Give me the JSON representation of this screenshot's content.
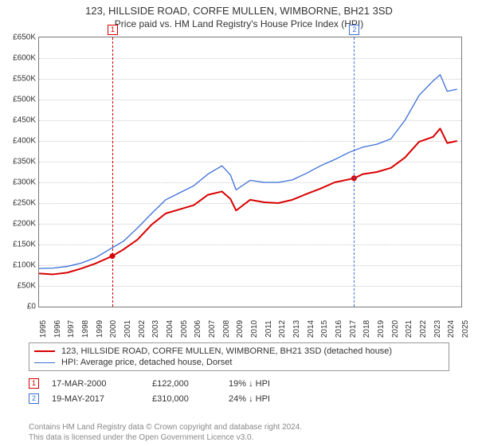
{
  "title": "123, HILLSIDE ROAD, CORFE MULLEN, WIMBORNE, BH21 3SD",
  "subtitle": "Price paid vs. HM Land Registry's House Price Index (HPI)",
  "chart": {
    "type": "line",
    "background_color": "#ffffff",
    "grid_color": "#c9c9c9",
    "border_color": "#7a7a7a",
    "x": {
      "min": 1995,
      "max": 2025,
      "ticks": [
        1995,
        1996,
        1997,
        1998,
        1999,
        2000,
        2001,
        2002,
        2003,
        2004,
        2005,
        2006,
        2007,
        2008,
        2009,
        2010,
        2011,
        2012,
        2013,
        2014,
        2015,
        2016,
        2017,
        2018,
        2019,
        2020,
        2021,
        2022,
        2023,
        2024,
        2025
      ]
    },
    "y": {
      "min": 0,
      "max": 650000,
      "step": 50000,
      "prefix": "£",
      "thousand": "K",
      "ticks": [
        0,
        50000,
        100000,
        150000,
        200000,
        250000,
        300000,
        350000,
        400000,
        450000,
        500000,
        550000,
        600000,
        650000
      ]
    },
    "series": [
      {
        "id": "property",
        "label": "123, HILLSIDE ROAD, CORFE MULLEN, WIMBORNE, BH21 3SD (detached house)",
        "color": "#d90000",
        "line_width": 2,
        "data": [
          [
            1995.0,
            80000
          ],
          [
            1996.0,
            78000
          ],
          [
            1997.0,
            82000
          ],
          [
            1998.0,
            92000
          ],
          [
            1999.0,
            104000
          ],
          [
            2000.2,
            122000
          ],
          [
            2001.0,
            138000
          ],
          [
            2002.0,
            162000
          ],
          [
            2003.0,
            198000
          ],
          [
            2004.0,
            225000
          ],
          [
            2005.0,
            235000
          ],
          [
            2006.0,
            245000
          ],
          [
            2007.0,
            270000
          ],
          [
            2008.0,
            278000
          ],
          [
            2008.6,
            260000
          ],
          [
            2009.0,
            232000
          ],
          [
            2010.0,
            258000
          ],
          [
            2011.0,
            252000
          ],
          [
            2012.0,
            250000
          ],
          [
            2013.0,
            258000
          ],
          [
            2014.0,
            272000
          ],
          [
            2015.0,
            285000
          ],
          [
            2016.0,
            300000
          ],
          [
            2017.4,
            310000
          ],
          [
            2018.0,
            320000
          ],
          [
            2019.0,
            325000
          ],
          [
            2020.0,
            335000
          ],
          [
            2021.0,
            360000
          ],
          [
            2022.0,
            398000
          ],
          [
            2023.0,
            410000
          ],
          [
            2023.5,
            430000
          ],
          [
            2024.0,
            395000
          ],
          [
            2024.7,
            400000
          ]
        ],
        "markers": [
          {
            "x": 2000.21,
            "y": 122000
          },
          {
            "x": 2017.38,
            "y": 310000
          }
        ]
      },
      {
        "id": "hpi",
        "label": "HPI: Average price, detached house, Dorset",
        "color": "#3a6fd8",
        "line_width": 1.3,
        "data": [
          [
            1995.0,
            92000
          ],
          [
            1996.0,
            93000
          ],
          [
            1997.0,
            97000
          ],
          [
            1998.0,
            105000
          ],
          [
            1999.0,
            118000
          ],
          [
            2000.0,
            138000
          ],
          [
            2001.0,
            158000
          ],
          [
            2002.0,
            190000
          ],
          [
            2003.0,
            225000
          ],
          [
            2004.0,
            258000
          ],
          [
            2005.0,
            275000
          ],
          [
            2006.0,
            292000
          ],
          [
            2007.0,
            320000
          ],
          [
            2008.0,
            340000
          ],
          [
            2008.6,
            318000
          ],
          [
            2009.0,
            282000
          ],
          [
            2010.0,
            305000
          ],
          [
            2011.0,
            300000
          ],
          [
            2012.0,
            300000
          ],
          [
            2013.0,
            306000
          ],
          [
            2014.0,
            322000
          ],
          [
            2015.0,
            340000
          ],
          [
            2016.0,
            355000
          ],
          [
            2017.0,
            372000
          ],
          [
            2018.0,
            385000
          ],
          [
            2019.0,
            392000
          ],
          [
            2020.0,
            405000
          ],
          [
            2021.0,
            450000
          ],
          [
            2022.0,
            510000
          ],
          [
            2023.0,
            545000
          ],
          [
            2023.5,
            560000
          ],
          [
            2024.0,
            520000
          ],
          [
            2024.7,
            525000
          ]
        ]
      }
    ],
    "sale_markers": [
      {
        "idx": "1",
        "x": 2000.21,
        "color": "#d90000"
      },
      {
        "idx": "2",
        "x": 2017.38,
        "color": "#3a6fd8"
      }
    ]
  },
  "legend": {
    "border_color": "#999999",
    "rows": [
      {
        "color": "#d90000",
        "width": 2,
        "label": "123, HILLSIDE ROAD, CORFE MULLEN, WIMBORNE, BH21 3SD (detached house)"
      },
      {
        "color": "#3a6fd8",
        "width": 1.3,
        "label": "HPI: Average price, detached house, Dorset"
      }
    ]
  },
  "sales": [
    {
      "idx": "1",
      "color": "#d90000",
      "date": "17-MAR-2000",
      "price": "£122,000",
      "delta": "19% ↓ HPI"
    },
    {
      "idx": "2",
      "color": "#3a6fd8",
      "date": "19-MAY-2017",
      "price": "£310,000",
      "delta": "24% ↓ HPI"
    }
  ],
  "license": {
    "l1": "Contains HM Land Registry data © Crown copyright and database right 2024.",
    "l2": "This data is licensed under the Open Government Licence v3.0."
  }
}
